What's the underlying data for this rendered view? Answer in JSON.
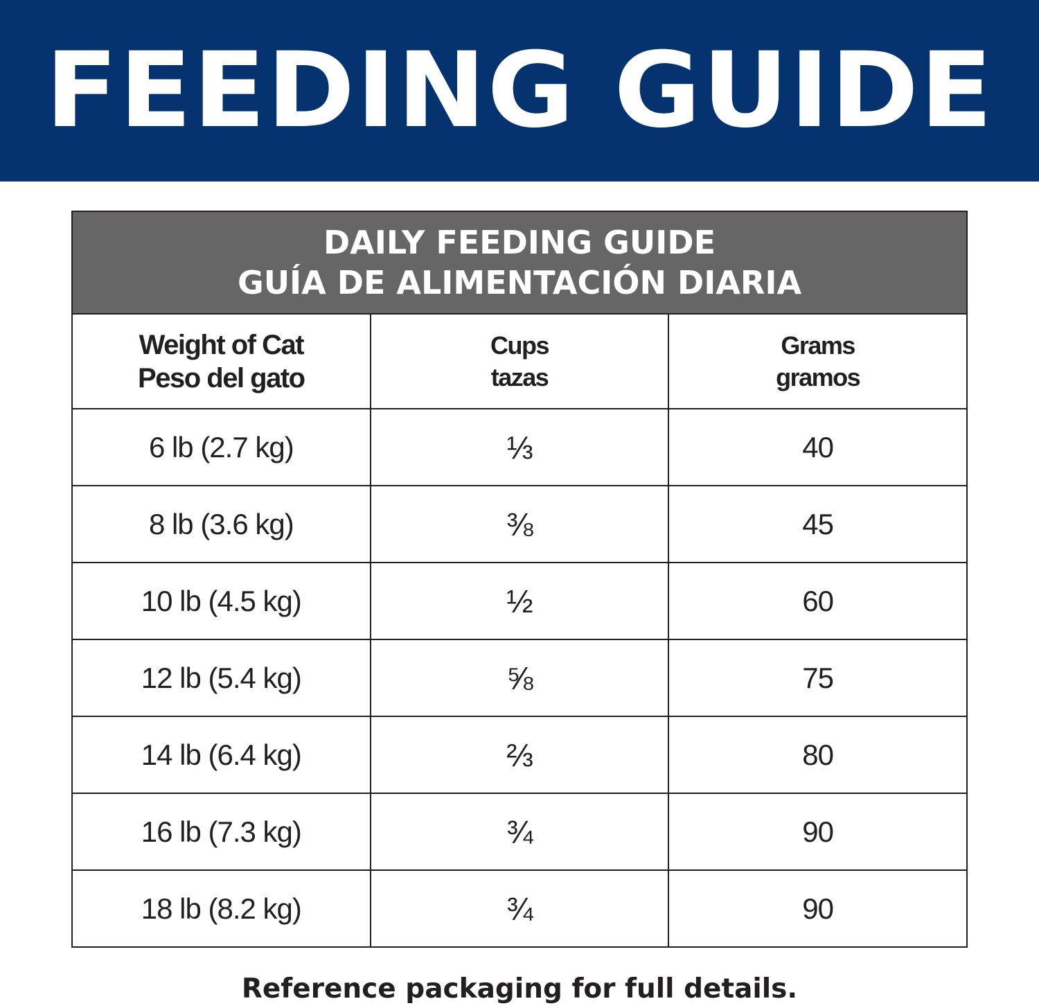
{
  "banner": {
    "title": "FEEDING GUIDE",
    "color": "#04336f"
  },
  "table": {
    "title_en": "DAILY FEEDING GUIDE",
    "title_es": "GUÍA DE ALIMENTACIÓN DIARIA",
    "header_color": "#666666",
    "columns": [
      {
        "en": "Weight of Cat",
        "es": "Peso del gato"
      },
      {
        "en": "Cups",
        "es": "tazas"
      },
      {
        "en": "Grams",
        "es": "gramos"
      }
    ],
    "rows": [
      {
        "weight": "6 lb (2.7 kg)",
        "cups": "⅓",
        "grams": "40"
      },
      {
        "weight": "8 lb (3.6 kg)",
        "cups": "⅜",
        "grams": "45"
      },
      {
        "weight": "10 lb (4.5 kg)",
        "cups": "½",
        "grams": "60"
      },
      {
        "weight": "12 lb (5.4 kg)",
        "cups": "⅝",
        "grams": "75"
      },
      {
        "weight": "14 lb (6.4 kg)",
        "cups": "⅔",
        "grams": "80"
      },
      {
        "weight": "16 lb (7.3 kg)",
        "cups": "¾",
        "grams": "90"
      },
      {
        "weight": "18 lb (8.2 kg)",
        "cups": "¾",
        "grams": "90"
      }
    ]
  },
  "footer": {
    "note": "Reference packaging for full details."
  }
}
